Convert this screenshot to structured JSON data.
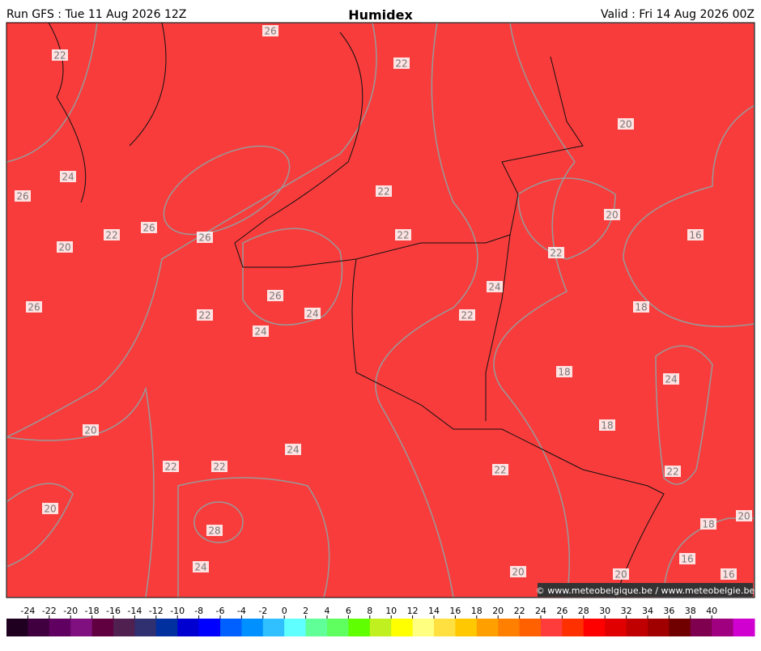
{
  "header": {
    "run": "Run GFS : Tue 11 Aug 2026 12Z",
    "title": "Humidex",
    "valid": "Valid : Fri 14 Aug 2026 00Z"
  },
  "contour_labels": [
    "26",
    "22",
    "22",
    "20",
    "24",
    "26",
    "22",
    "20",
    "22",
    "26",
    "26",
    "22",
    "16",
    "20",
    "22",
    "24",
    "26",
    "26",
    "24",
    "22",
    "22",
    "18",
    "24",
    "18",
    "24",
    "20",
    "18",
    "24",
    "22",
    "22",
    "22",
    "22",
    "20",
    "20",
    "18",
    "28",
    "16",
    "24",
    "20",
    "20",
    "16"
  ],
  "copyright": "© www.meteobelgique.be / www.meteobelgie.be",
  "colorbar": {
    "ticks": [
      -24,
      -22,
      -20,
      -18,
      -16,
      -14,
      -12,
      -10,
      -8,
      -6,
      -4,
      -2,
      0,
      2,
      4,
      6,
      8,
      10,
      12,
      14,
      16,
      18,
      20,
      22,
      24,
      26,
      28,
      30,
      32,
      34,
      36,
      38,
      40
    ],
    "colors": [
      "#200020",
      "#400040",
      "#600060",
      "#801080",
      "#600040",
      "#502050",
      "#303070",
      "#0030a0",
      "#0000d0",
      "#0000ff",
      "#0060ff",
      "#0090ff",
      "#30c0ff",
      "#60ffff",
      "#60ff98",
      "#60ff60",
      "#60ff00",
      "#c0f020",
      "#ffff00",
      "#ffff80",
      "#ffe040",
      "#ffc800",
      "#ffa000",
      "#ff8000",
      "#ff6000",
      "#ff3c3c",
      "#ff3000",
      "#ff0000",
      "#e00000",
      "#c00000",
      "#a00000",
      "#700000",
      "#800050",
      "#a00080",
      "#d000d0"
    ]
  }
}
